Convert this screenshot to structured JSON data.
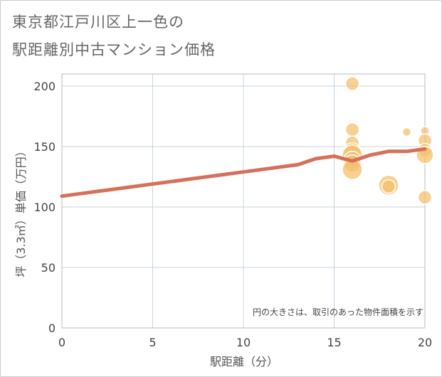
{
  "chart_data": {
    "type": "scatter",
    "title_lines": [
      "東京都江戸川区上一色の",
      "駅距離別中古マンション価格"
    ],
    "xlabel": "駅距離（分）",
    "ylabel": "坪（3.3㎡）単価（万円）",
    "xlim": [
      0,
      20
    ],
    "ylim": [
      0,
      210
    ],
    "x_ticks": [
      0,
      5,
      10,
      15,
      20
    ],
    "y_ticks": [
      0,
      50,
      100,
      150,
      200
    ],
    "grid": true,
    "annotation": "円の大きさは、取引のあった物件面積を示す",
    "scatter_points": [
      {
        "x": 16,
        "y": 202,
        "size": 2
      },
      {
        "x": 16,
        "y": 164,
        "size": 2
      },
      {
        "x": 16,
        "y": 153,
        "size": 2
      },
      {
        "x": 16,
        "y": 146,
        "size": 3
      },
      {
        "x": 16,
        "y": 143,
        "size": 4
      },
      {
        "x": 16,
        "y": 139,
        "size": 3
      },
      {
        "x": 16,
        "y": 136,
        "size": 3
      },
      {
        "x": 16,
        "y": 131,
        "size": 4
      },
      {
        "x": 18,
        "y": 118,
        "size": 4
      },
      {
        "x": 18,
        "y": 117,
        "size": 2
      },
      {
        "x": 19,
        "y": 162,
        "size": 1
      },
      {
        "x": 20,
        "y": 163,
        "size": 1
      },
      {
        "x": 20,
        "y": 155,
        "size": 2
      },
      {
        "x": 20,
        "y": 147,
        "size": 2
      },
      {
        "x": 20,
        "y": 143,
        "size": 3
      },
      {
        "x": 20,
        "y": 108,
        "size": 2
      }
    ],
    "series": [
      {
        "name": "trend",
        "type": "line",
        "color": "#d5705a",
        "x": [
          0,
          1,
          2,
          3,
          4,
          5,
          6,
          7,
          8,
          9,
          10,
          11,
          12,
          13,
          14,
          15,
          16,
          17,
          18,
          19,
          20
        ],
        "y": [
          109,
          111,
          113,
          115,
          117,
          119,
          121,
          123,
          125,
          127,
          129,
          131,
          133,
          135,
          140,
          142,
          138,
          143,
          146,
          146,
          148
        ]
      }
    ],
    "colors": {
      "bubble_fill": "#f4c06d",
      "bubble_stroke": "#ffffff",
      "grid": "#c8d4de",
      "trend": "#d5705a"
    }
  }
}
